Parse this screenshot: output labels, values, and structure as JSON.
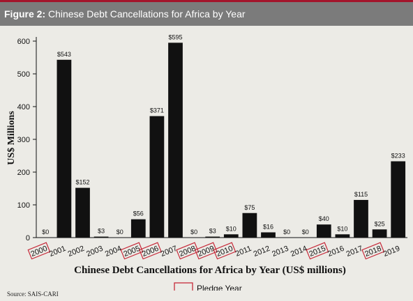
{
  "figure": {
    "label": "Figure 2:",
    "title": "Chinese Debt Cancellations for Africa by Year"
  },
  "source": "Source: SAIS-CARI",
  "colors": {
    "bar": "#111111",
    "pledge_box": "#c62a3a",
    "header_bg": "#7b7b7b",
    "header_rule": "#a3142b",
    "background": "#ecebe6"
  },
  "chart_data": {
    "type": "bar",
    "title": "",
    "xlabel": "Chinese Debt Cancellations for Africa by Year (US$ millions)",
    "ylabel": "US$ Millions",
    "ylim": [
      0,
      600
    ],
    "yticks": [
      0,
      100,
      200,
      300,
      400,
      500,
      600
    ],
    "grid": false,
    "categories": [
      "2000",
      "2001",
      "2002",
      "2003",
      "2004",
      "2005",
      "2006",
      "2007",
      "2008",
      "2009",
      "2010",
      "2011",
      "2012",
      "2013",
      "2014",
      "2015",
      "2016",
      "2017",
      "2018",
      "2019"
    ],
    "values": [
      0,
      543,
      152,
      3,
      0,
      56,
      371,
      595,
      0,
      3,
      10,
      75,
      16,
      0,
      0,
      40,
      10,
      115,
      25,
      233
    ],
    "data_labels": [
      "$0",
      "$543",
      "$152",
      "$3",
      "$0",
      "$56",
      "$371",
      "$595",
      "$0",
      "$3",
      "$10",
      "$75",
      "$16",
      "$0",
      "$0",
      "$40",
      "$10",
      "$115",
      "$25",
      "$233"
    ],
    "pledge_years": [
      "2000",
      "2005",
      "2006",
      "2008",
      "2009",
      "2010",
      "2015",
      "2018"
    ],
    "legend": {
      "label": "Pledge Year",
      "placement": "bottom-center"
    }
  }
}
